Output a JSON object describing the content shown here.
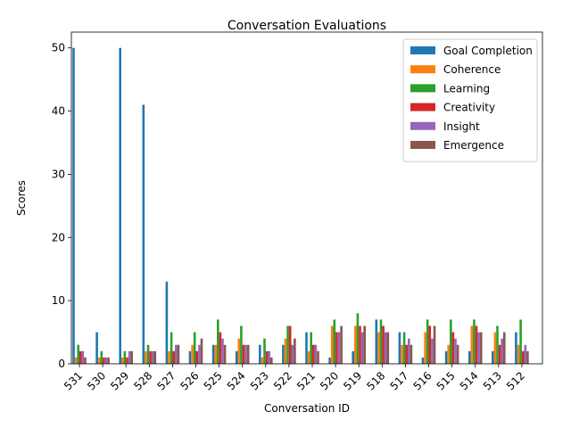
{
  "chart_data": {
    "type": "bar",
    "title": "Conversation Evaluations",
    "xlabel": "Conversation ID",
    "ylabel": "Scores",
    "ylim": [
      0,
      52.5
    ],
    "yticks": [
      0,
      10,
      20,
      30,
      40,
      50
    ],
    "grid": false,
    "legend_position": "top-right",
    "categories": [
      "531",
      "530",
      "529",
      "528",
      "527",
      "526",
      "525",
      "524",
      "523",
      "522",
      "521",
      "520",
      "519",
      "518",
      "517",
      "516",
      "515",
      "514",
      "513",
      "512"
    ],
    "series": [
      {
        "name": "Goal Completion",
        "color": "#1f77b4",
        "values": [
          50,
          5,
          50,
          41,
          13,
          2,
          3,
          2,
          3,
          3,
          5,
          1,
          2,
          7,
          5,
          1,
          2,
          2,
          2,
          5
        ]
      },
      {
        "name": "Coherence",
        "color": "#ff7f0e",
        "values": [
          1,
          1,
          1,
          2,
          2,
          3,
          3,
          4,
          1,
          4,
          2,
          6,
          6,
          5,
          3,
          5,
          3,
          6,
          5,
          3
        ]
      },
      {
        "name": "Learning",
        "color": "#2ca02c",
        "values": [
          3,
          2,
          2,
          3,
          5,
          5,
          7,
          6,
          4,
          6,
          5,
          7,
          8,
          7,
          5,
          7,
          7,
          7,
          6,
          7
        ]
      },
      {
        "name": "Creativity",
        "color": "#d62728",
        "values": [
          2,
          1,
          1,
          2,
          2,
          2,
          5,
          3,
          2,
          6,
          3,
          5,
          6,
          6,
          3,
          6,
          5,
          6,
          3,
          2
        ]
      },
      {
        "name": "Insight",
        "color": "#9467bd",
        "values": [
          2,
          1,
          2,
          2,
          3,
          3,
          4,
          3,
          2,
          3,
          3,
          5,
          5,
          5,
          4,
          4,
          4,
          5,
          4,
          3
        ]
      },
      {
        "name": "Emergence",
        "color": "#8c564b",
        "values": [
          1,
          1,
          2,
          2,
          3,
          4,
          3,
          3,
          1,
          4,
          2,
          6,
          6,
          5,
          3,
          6,
          3,
          5,
          5,
          2
        ]
      }
    ]
  }
}
